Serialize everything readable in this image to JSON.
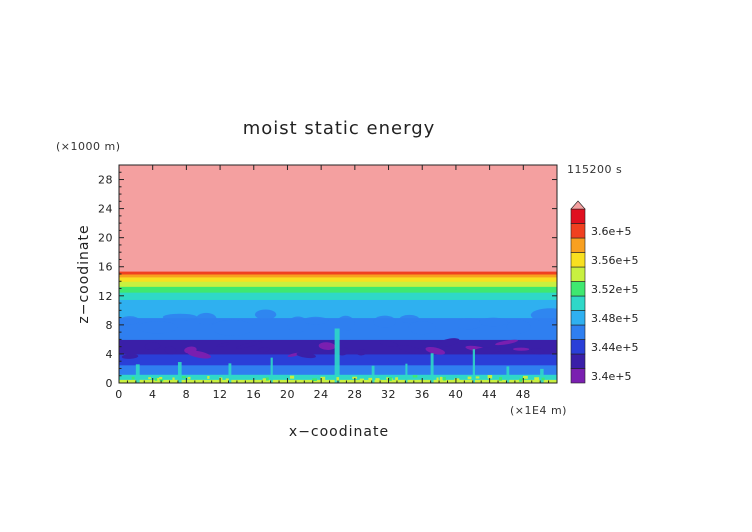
{
  "chart_data": {
    "type": "heatmap",
    "title": "moist static energy",
    "xlabel": "x−coodinate",
    "ylabel": "z−coodinate",
    "x_unit": "(×1E4 m)",
    "y_unit": "(×1000 m)",
    "time_label": "115200 s",
    "xlim": [
      0,
      52
    ],
    "ylim": [
      0,
      30
    ],
    "x_ticks": [
      0,
      4,
      8,
      12,
      16,
      20,
      24,
      28,
      32,
      36,
      40,
      44,
      48
    ],
    "x_tick_labels": [
      "0",
      "4",
      "8",
      "12",
      "16",
      "20",
      "24",
      "28",
      "32",
      "36",
      "40",
      "44",
      "48"
    ],
    "y_ticks": [
      0,
      4,
      8,
      12,
      16,
      20,
      24,
      28
    ],
    "y_tick_labels": [
      "0",
      "4",
      "8",
      "12",
      "16",
      "20",
      "24",
      "28"
    ],
    "colorbar": {
      "levels": [
        340000,
        342000,
        344000,
        346000,
        348000,
        350000,
        352000,
        354000,
        356000,
        358000,
        360000,
        362000
      ],
      "colors": [
        "#7a1fb0",
        "#3a1fa8",
        "#2a3fd8",
        "#2f7ff0",
        "#2fb0f0",
        "#2fd8c8",
        "#3fe870",
        "#c8f040",
        "#f8e020",
        "#f8a020",
        "#f04020",
        "#e01020",
        "#f4a0a0"
      ],
      "labels": [
        "3.4e+5",
        "3.44e+5",
        "3.48e+5",
        "3.52e+5",
        "3.56e+5",
        "3.6e+5"
      ],
      "label_values": [
        340000,
        344000,
        348000,
        352000,
        356000,
        360000
      ],
      "extend": "max"
    },
    "vertical_profile": [
      {
        "z_top": 0.5,
        "value": 352000
      },
      {
        "z_top": 1.2,
        "value": 348000
      },
      {
        "z_top": 2.5,
        "value": 345000
      },
      {
        "z_top": 4.0,
        "value": 342000
      },
      {
        "z_top": 6.0,
        "value": 340500
      },
      {
        "z_top": 9.0,
        "value": 344500
      },
      {
        "z_top": 11.5,
        "value": 347000
      },
      {
        "z_top": 12.5,
        "value": 349000
      },
      {
        "z_top": 13.3,
        "value": 351000
      },
      {
        "z_top": 14.0,
        "value": 353000
      },
      {
        "z_top": 14.6,
        "value": 355000
      },
      {
        "z_top": 15.0,
        "value": 357000
      },
      {
        "z_top": 15.4,
        "value": 359000
      },
      {
        "z_top": 30.0,
        "value": 363000
      }
    ]
  }
}
